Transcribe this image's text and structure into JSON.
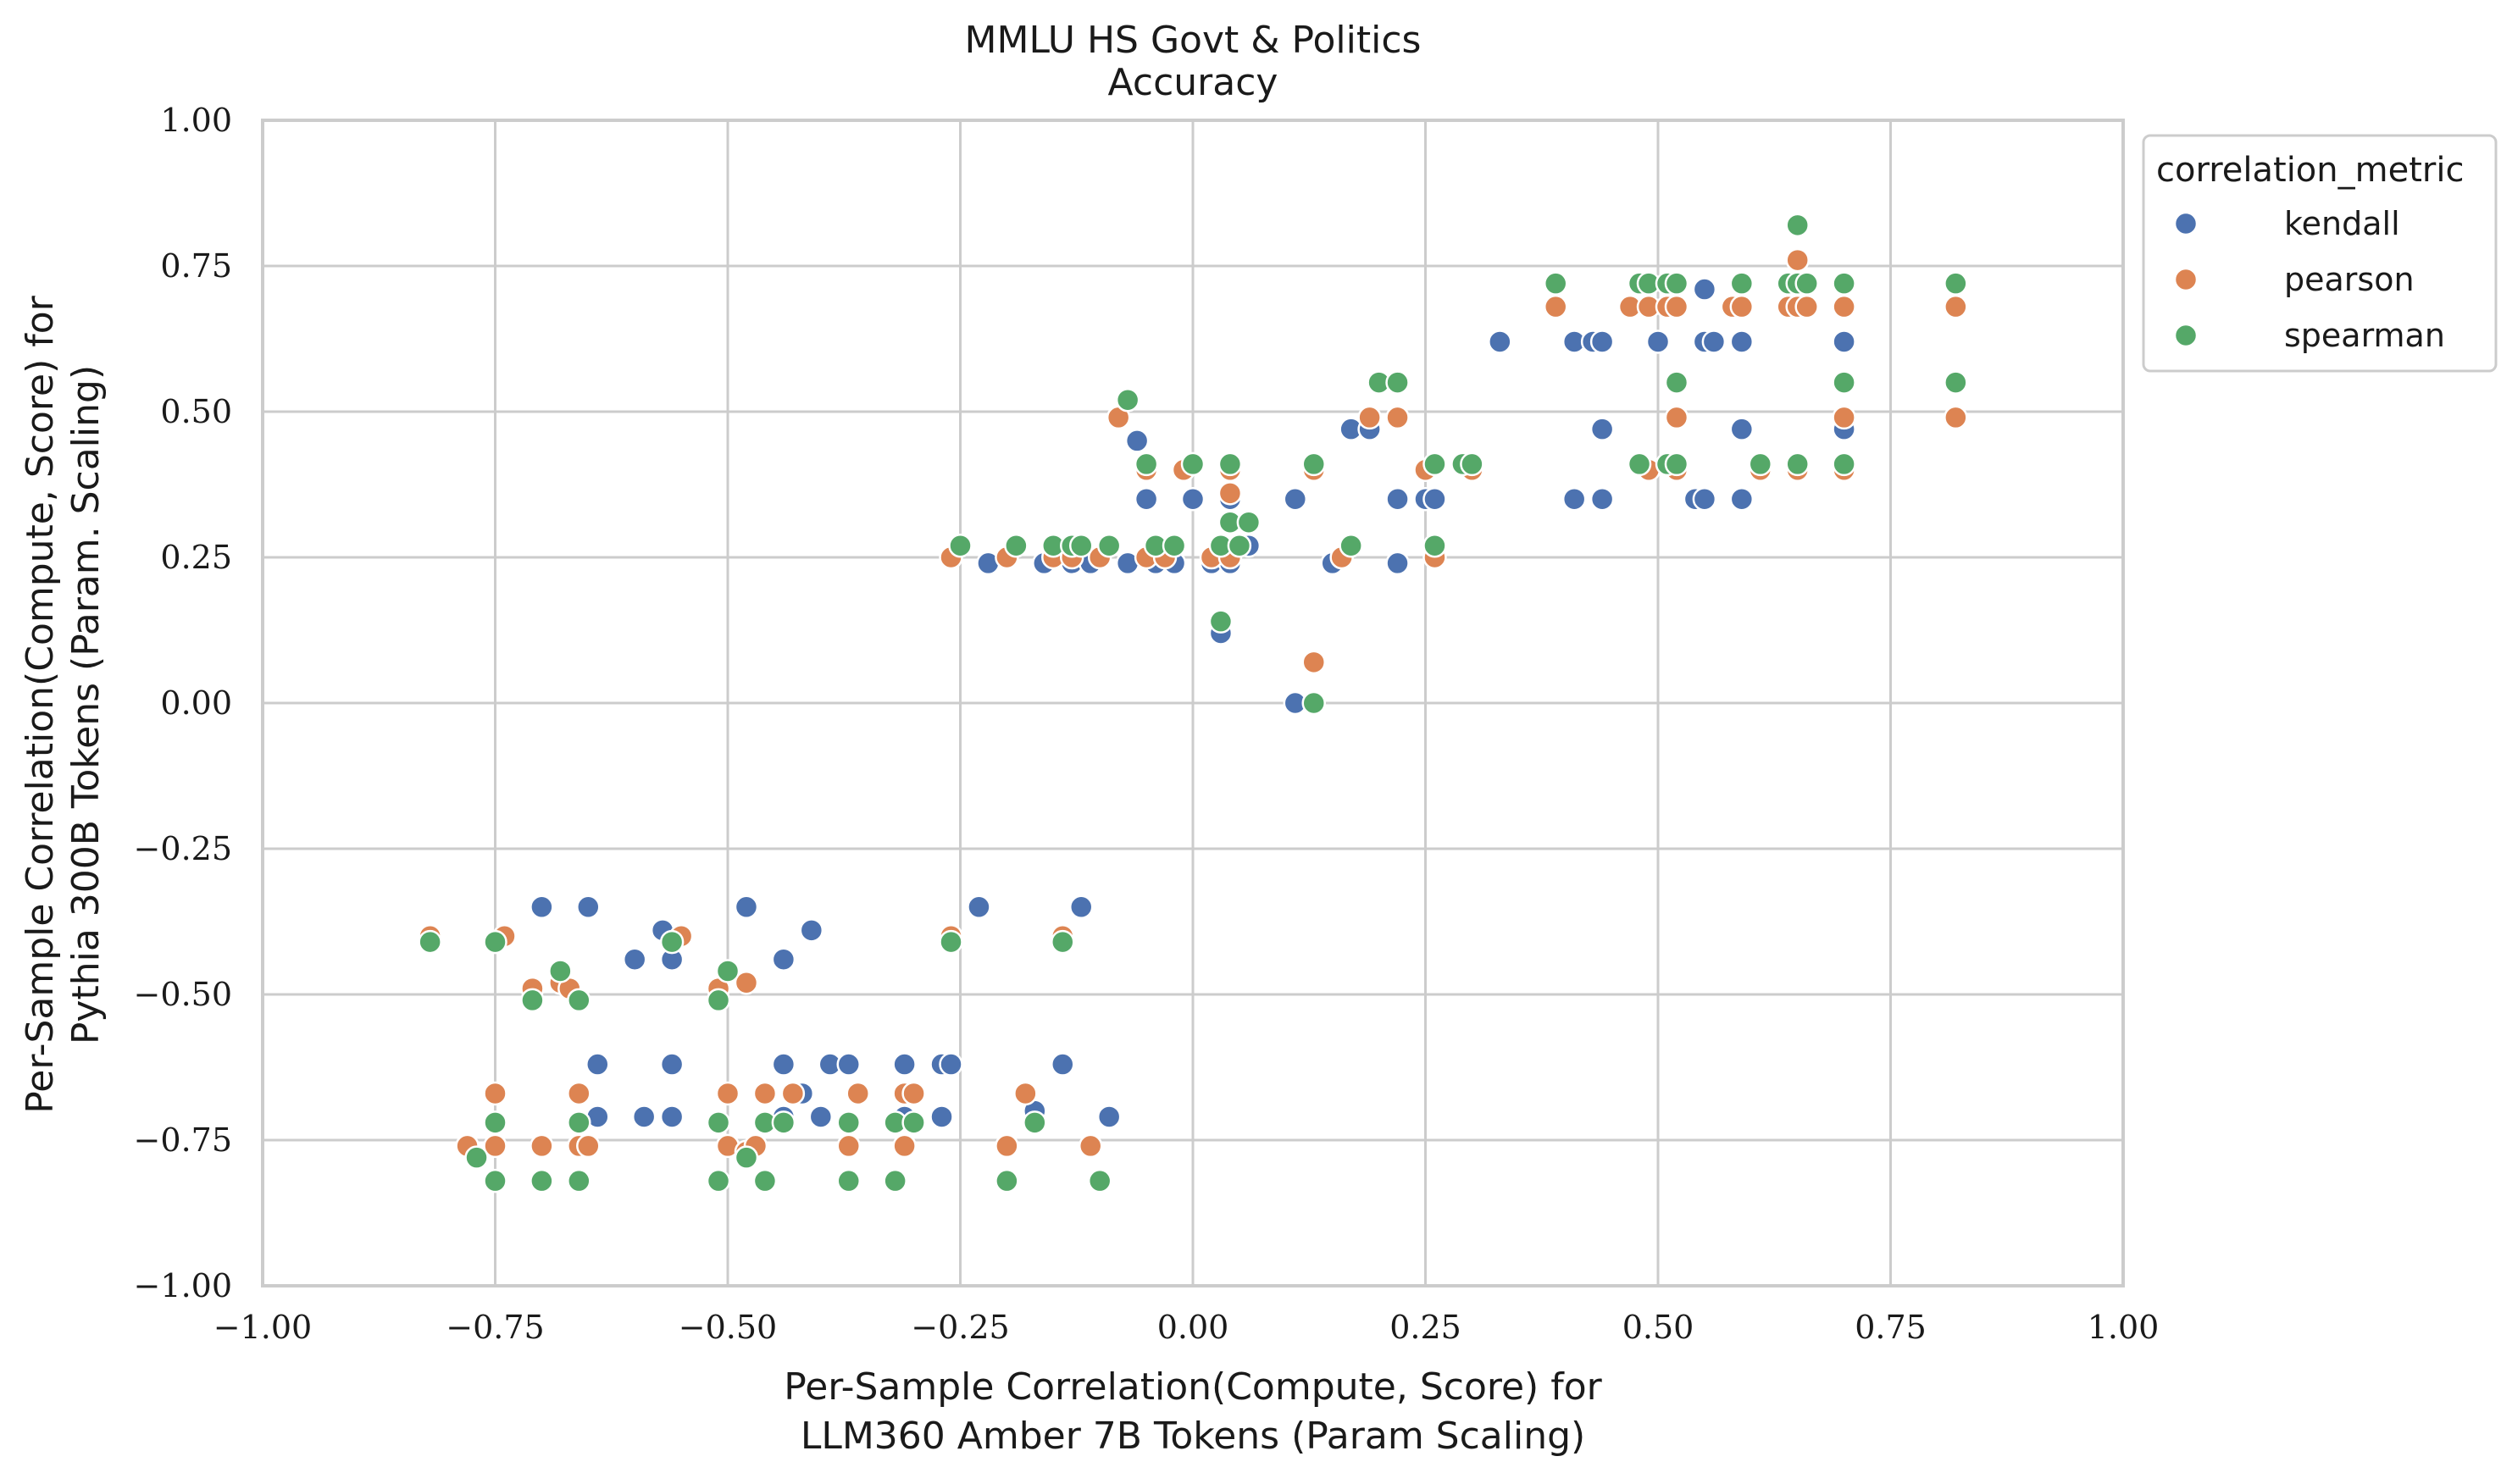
{
  "chart_data": {
    "type": "scatter",
    "title": "MMLU HS Govt & Politics",
    "subtitle": "Accuracy",
    "xlabel_lines": [
      "Per-Sample Correlation(Compute, Score) for",
      "LLM360 Amber 7B Tokens (Param Scaling)"
    ],
    "ylabel_lines": [
      "Per-Sample Correlation(Compute, Score) for",
      "Pythia 300B Tokens (Param. Scaling)"
    ],
    "xlim": [
      -1.0,
      1.0
    ],
    "ylim": [
      -1.0,
      1.0
    ],
    "xticks": [
      -1.0,
      -0.75,
      -0.5,
      -0.25,
      0.0,
      0.25,
      0.5,
      0.75,
      1.0
    ],
    "yticks": [
      -1.0,
      -0.75,
      -0.5,
      -0.25,
      0.0,
      0.25,
      0.5,
      0.75,
      1.0
    ],
    "xtick_labels": [
      "−1.00",
      "−0.75",
      "−0.50",
      "−0.25",
      "0.00",
      "0.25",
      "0.50",
      "0.75",
      "1.00"
    ],
    "ytick_labels": [
      "−1.00",
      "−0.75",
      "−0.50",
      "−0.25",
      "0.00",
      "0.25",
      "0.50",
      "0.75",
      "1.00"
    ],
    "grid": true,
    "legend": {
      "title": "correlation_metric",
      "placement": "outside-top-right"
    },
    "series": [
      {
        "name": "kendall",
        "color": "#4c72b0",
        "points": [
          [
            -0.7,
            -0.35
          ],
          [
            -0.65,
            -0.35
          ],
          [
            -0.48,
            -0.35
          ],
          [
            -0.23,
            -0.35
          ],
          [
            -0.12,
            -0.35
          ],
          [
            -0.57,
            -0.39
          ],
          [
            -0.41,
            -0.39
          ],
          [
            -0.6,
            -0.44
          ],
          [
            -0.56,
            -0.44
          ],
          [
            -0.44,
            -0.44
          ],
          [
            -0.64,
            -0.62
          ],
          [
            -0.56,
            -0.62
          ],
          [
            -0.44,
            -0.62
          ],
          [
            -0.39,
            -0.62
          ],
          [
            -0.37,
            -0.62
          ],
          [
            -0.31,
            -0.62
          ],
          [
            -0.27,
            -0.62
          ],
          [
            -0.26,
            -0.62
          ],
          [
            -0.14,
            -0.62
          ],
          [
            -0.66,
            -0.67
          ],
          [
            -0.42,
            -0.67
          ],
          [
            -0.17,
            -0.7
          ],
          [
            -0.64,
            -0.71
          ],
          [
            -0.59,
            -0.71
          ],
          [
            -0.56,
            -0.71
          ],
          [
            -0.44,
            -0.71
          ],
          [
            -0.4,
            -0.71
          ],
          [
            -0.31,
            -0.71
          ],
          [
            -0.27,
            -0.71
          ],
          [
            -0.09,
            -0.71
          ],
          [
            -0.22,
            0.24
          ],
          [
            -0.16,
            0.24
          ],
          [
            -0.13,
            0.24
          ],
          [
            -0.11,
            0.24
          ],
          [
            -0.07,
            0.24
          ],
          [
            -0.04,
            0.24
          ],
          [
            -0.02,
            0.24
          ],
          [
            0.02,
            0.24
          ],
          [
            0.04,
            0.24
          ],
          [
            0.15,
            0.24
          ],
          [
            0.22,
            0.24
          ],
          [
            0.06,
            0.27
          ],
          [
            0.03,
            0.12
          ],
          [
            0.11,
            0.0
          ],
          [
            -0.05,
            0.35
          ],
          [
            0.0,
            0.35
          ],
          [
            0.04,
            0.35
          ],
          [
            0.11,
            0.35
          ],
          [
            0.22,
            0.35
          ],
          [
            0.25,
            0.35
          ],
          [
            0.26,
            0.35
          ],
          [
            0.41,
            0.35
          ],
          [
            0.44,
            0.35
          ],
          [
            0.54,
            0.35
          ],
          [
            0.55,
            0.35
          ],
          [
            0.59,
            0.35
          ],
          [
            -0.06,
            0.45
          ],
          [
            0.17,
            0.47
          ],
          [
            0.19,
            0.47
          ],
          [
            0.44,
            0.47
          ],
          [
            0.59,
            0.47
          ],
          [
            0.7,
            0.47
          ],
          [
            0.33,
            0.62
          ],
          [
            0.41,
            0.62
          ],
          [
            0.43,
            0.62
          ],
          [
            0.44,
            0.62
          ],
          [
            0.5,
            0.62
          ],
          [
            0.55,
            0.62
          ],
          [
            0.56,
            0.62
          ],
          [
            0.59,
            0.62
          ],
          [
            0.7,
            0.62
          ],
          [
            0.55,
            0.71
          ]
        ]
      },
      {
        "name": "pearson",
        "color": "#dd8452",
        "points": [
          [
            -0.82,
            -0.4
          ],
          [
            -0.74,
            -0.4
          ],
          [
            -0.55,
            -0.4
          ],
          [
            -0.26,
            -0.4
          ],
          [
            -0.14,
            -0.4
          ],
          [
            -0.71,
            -0.49
          ],
          [
            -0.68,
            -0.48
          ],
          [
            -0.67,
            -0.49
          ],
          [
            -0.51,
            -0.49
          ],
          [
            -0.48,
            -0.48
          ],
          [
            -0.75,
            -0.67
          ],
          [
            -0.66,
            -0.67
          ],
          [
            -0.5,
            -0.67
          ],
          [
            -0.46,
            -0.67
          ],
          [
            -0.43,
            -0.67
          ],
          [
            -0.36,
            -0.67
          ],
          [
            -0.31,
            -0.67
          ],
          [
            -0.3,
            -0.67
          ],
          [
            -0.18,
            -0.67
          ],
          [
            -0.78,
            -0.76
          ],
          [
            -0.75,
            -0.76
          ],
          [
            -0.7,
            -0.76
          ],
          [
            -0.66,
            -0.76
          ],
          [
            -0.65,
            -0.76
          ],
          [
            -0.5,
            -0.76
          ],
          [
            -0.48,
            -0.77
          ],
          [
            -0.47,
            -0.76
          ],
          [
            -0.37,
            -0.76
          ],
          [
            -0.31,
            -0.76
          ],
          [
            -0.2,
            -0.76
          ],
          [
            -0.11,
            -0.76
          ],
          [
            -0.26,
            0.25
          ],
          [
            -0.2,
            0.25
          ],
          [
            -0.15,
            0.25
          ],
          [
            -0.13,
            0.25
          ],
          [
            -0.1,
            0.25
          ],
          [
            -0.05,
            0.25
          ],
          [
            -0.03,
            0.25
          ],
          [
            0.02,
            0.25
          ],
          [
            0.04,
            0.25
          ],
          [
            0.16,
            0.25
          ],
          [
            0.26,
            0.25
          ],
          [
            0.13,
            0.07
          ],
          [
            0.04,
            0.36
          ],
          [
            -0.08,
            0.49
          ],
          [
            -0.05,
            0.4
          ],
          [
            -0.01,
            0.4
          ],
          [
            0.04,
            0.4
          ],
          [
            0.13,
            0.4
          ],
          [
            0.25,
            0.4
          ],
          [
            0.3,
            0.4
          ],
          [
            0.49,
            0.4
          ],
          [
            0.52,
            0.4
          ],
          [
            0.61,
            0.4
          ],
          [
            0.65,
            0.4
          ],
          [
            0.7,
            0.4
          ],
          [
            0.19,
            0.49
          ],
          [
            0.22,
            0.49
          ],
          [
            0.52,
            0.49
          ],
          [
            0.7,
            0.49
          ],
          [
            0.82,
            0.49
          ],
          [
            0.39,
            0.68
          ],
          [
            0.47,
            0.68
          ],
          [
            0.49,
            0.68
          ],
          [
            0.51,
            0.68
          ],
          [
            0.52,
            0.68
          ],
          [
            0.58,
            0.68
          ],
          [
            0.59,
            0.68
          ],
          [
            0.64,
            0.68
          ],
          [
            0.65,
            0.68
          ],
          [
            0.66,
            0.68
          ],
          [
            0.7,
            0.68
          ],
          [
            0.82,
            0.68
          ],
          [
            0.65,
            0.76
          ]
        ]
      },
      {
        "name": "spearman",
        "color": "#55a868",
        "points": [
          [
            -0.82,
            -0.41
          ],
          [
            -0.75,
            -0.41
          ],
          [
            -0.56,
            -0.41
          ],
          [
            -0.26,
            -0.41
          ],
          [
            -0.14,
            -0.41
          ],
          [
            -0.68,
            -0.46
          ],
          [
            -0.5,
            -0.46
          ],
          [
            -0.71,
            -0.51
          ],
          [
            -0.66,
            -0.51
          ],
          [
            -0.51,
            -0.51
          ],
          [
            -0.75,
            -0.72
          ],
          [
            -0.66,
            -0.72
          ],
          [
            -0.51,
            -0.72
          ],
          [
            -0.46,
            -0.72
          ],
          [
            -0.44,
            -0.72
          ],
          [
            -0.37,
            -0.72
          ],
          [
            -0.32,
            -0.72
          ],
          [
            -0.3,
            -0.72
          ],
          [
            -0.17,
            -0.72
          ],
          [
            -0.77,
            -0.78
          ],
          [
            -0.48,
            -0.78
          ],
          [
            -0.75,
            -0.82
          ],
          [
            -0.7,
            -0.82
          ],
          [
            -0.66,
            -0.82
          ],
          [
            -0.51,
            -0.82
          ],
          [
            -0.46,
            -0.82
          ],
          [
            -0.37,
            -0.82
          ],
          [
            -0.32,
            -0.82
          ],
          [
            -0.2,
            -0.82
          ],
          [
            -0.1,
            -0.82
          ],
          [
            -0.25,
            0.27
          ],
          [
            -0.19,
            0.27
          ],
          [
            -0.15,
            0.27
          ],
          [
            -0.13,
            0.27
          ],
          [
            -0.12,
            0.27
          ],
          [
            -0.09,
            0.27
          ],
          [
            -0.04,
            0.27
          ],
          [
            -0.02,
            0.27
          ],
          [
            0.03,
            0.27
          ],
          [
            0.05,
            0.27
          ],
          [
            0.17,
            0.27
          ],
          [
            0.26,
            0.27
          ],
          [
            0.04,
            0.31
          ],
          [
            0.06,
            0.31
          ],
          [
            0.03,
            0.14
          ],
          [
            0.13,
            0.0
          ],
          [
            -0.07,
            0.52
          ],
          [
            -0.05,
            0.41
          ],
          [
            0.0,
            0.41
          ],
          [
            0.04,
            0.41
          ],
          [
            0.13,
            0.41
          ],
          [
            0.26,
            0.41
          ],
          [
            0.29,
            0.41
          ],
          [
            0.3,
            0.41
          ],
          [
            0.48,
            0.41
          ],
          [
            0.51,
            0.41
          ],
          [
            0.52,
            0.41
          ],
          [
            0.61,
            0.41
          ],
          [
            0.65,
            0.41
          ],
          [
            0.7,
            0.41
          ],
          [
            0.2,
            0.55
          ],
          [
            0.22,
            0.55
          ],
          [
            0.52,
            0.55
          ],
          [
            0.7,
            0.55
          ],
          [
            0.82,
            0.55
          ],
          [
            0.39,
            0.72
          ],
          [
            0.48,
            0.72
          ],
          [
            0.49,
            0.72
          ],
          [
            0.51,
            0.72
          ],
          [
            0.52,
            0.72
          ],
          [
            0.59,
            0.72
          ],
          [
            0.64,
            0.72
          ],
          [
            0.65,
            0.72
          ],
          [
            0.66,
            0.72
          ],
          [
            0.7,
            0.72
          ],
          [
            0.82,
            0.72
          ],
          [
            0.65,
            0.82
          ]
        ]
      }
    ]
  }
}
